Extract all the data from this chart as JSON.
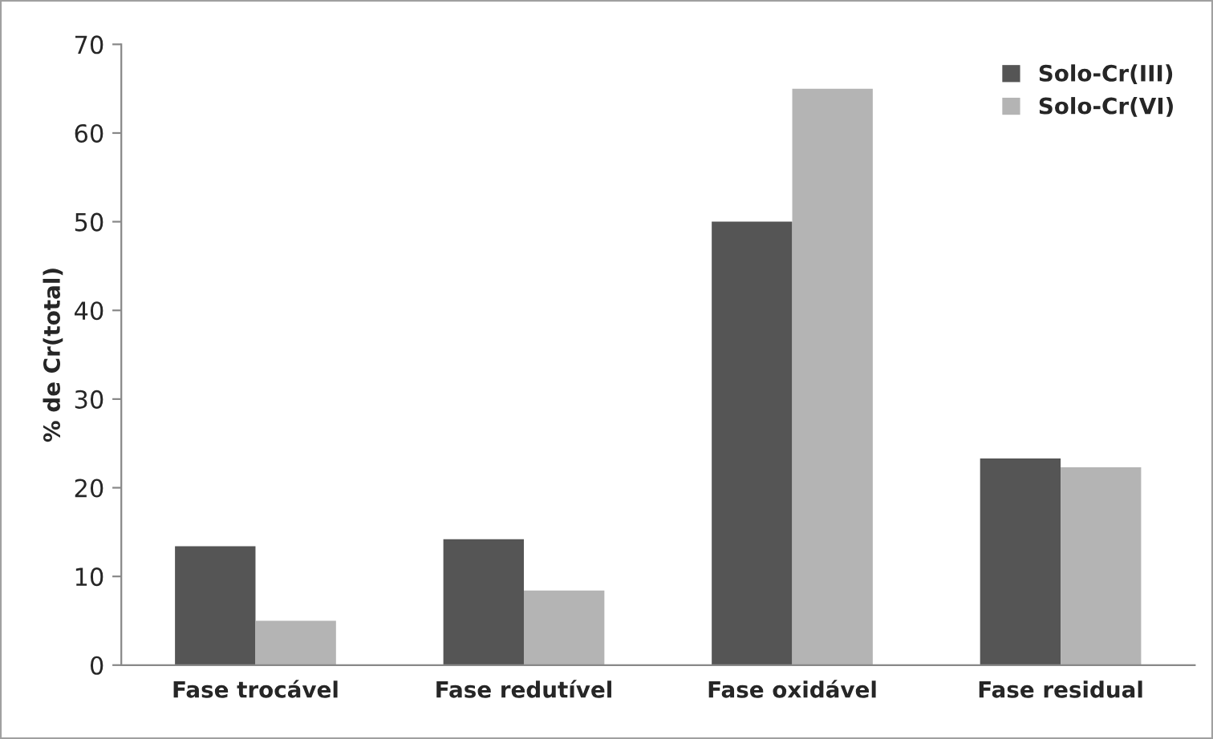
{
  "chart_data": {
    "type": "bar",
    "ylabel": "% de Cr(total)",
    "categories": [
      "Fase trocável",
      "Fase redutível",
      "Fase oxidável",
      "Fase residual"
    ],
    "series": [
      {
        "name": "Solo-Cr(III)",
        "color": "#555555",
        "values": [
          13.4,
          14.2,
          50,
          23.3
        ]
      },
      {
        "name": "Solo-Cr(VI)",
        "color": "#b4b4b4",
        "values": [
          5,
          8.4,
          65,
          22.3
        ]
      }
    ],
    "ylim": [
      0,
      70
    ],
    "yticks": [
      0,
      10,
      20,
      30,
      40,
      50,
      60,
      70
    ],
    "legend": "top right"
  }
}
